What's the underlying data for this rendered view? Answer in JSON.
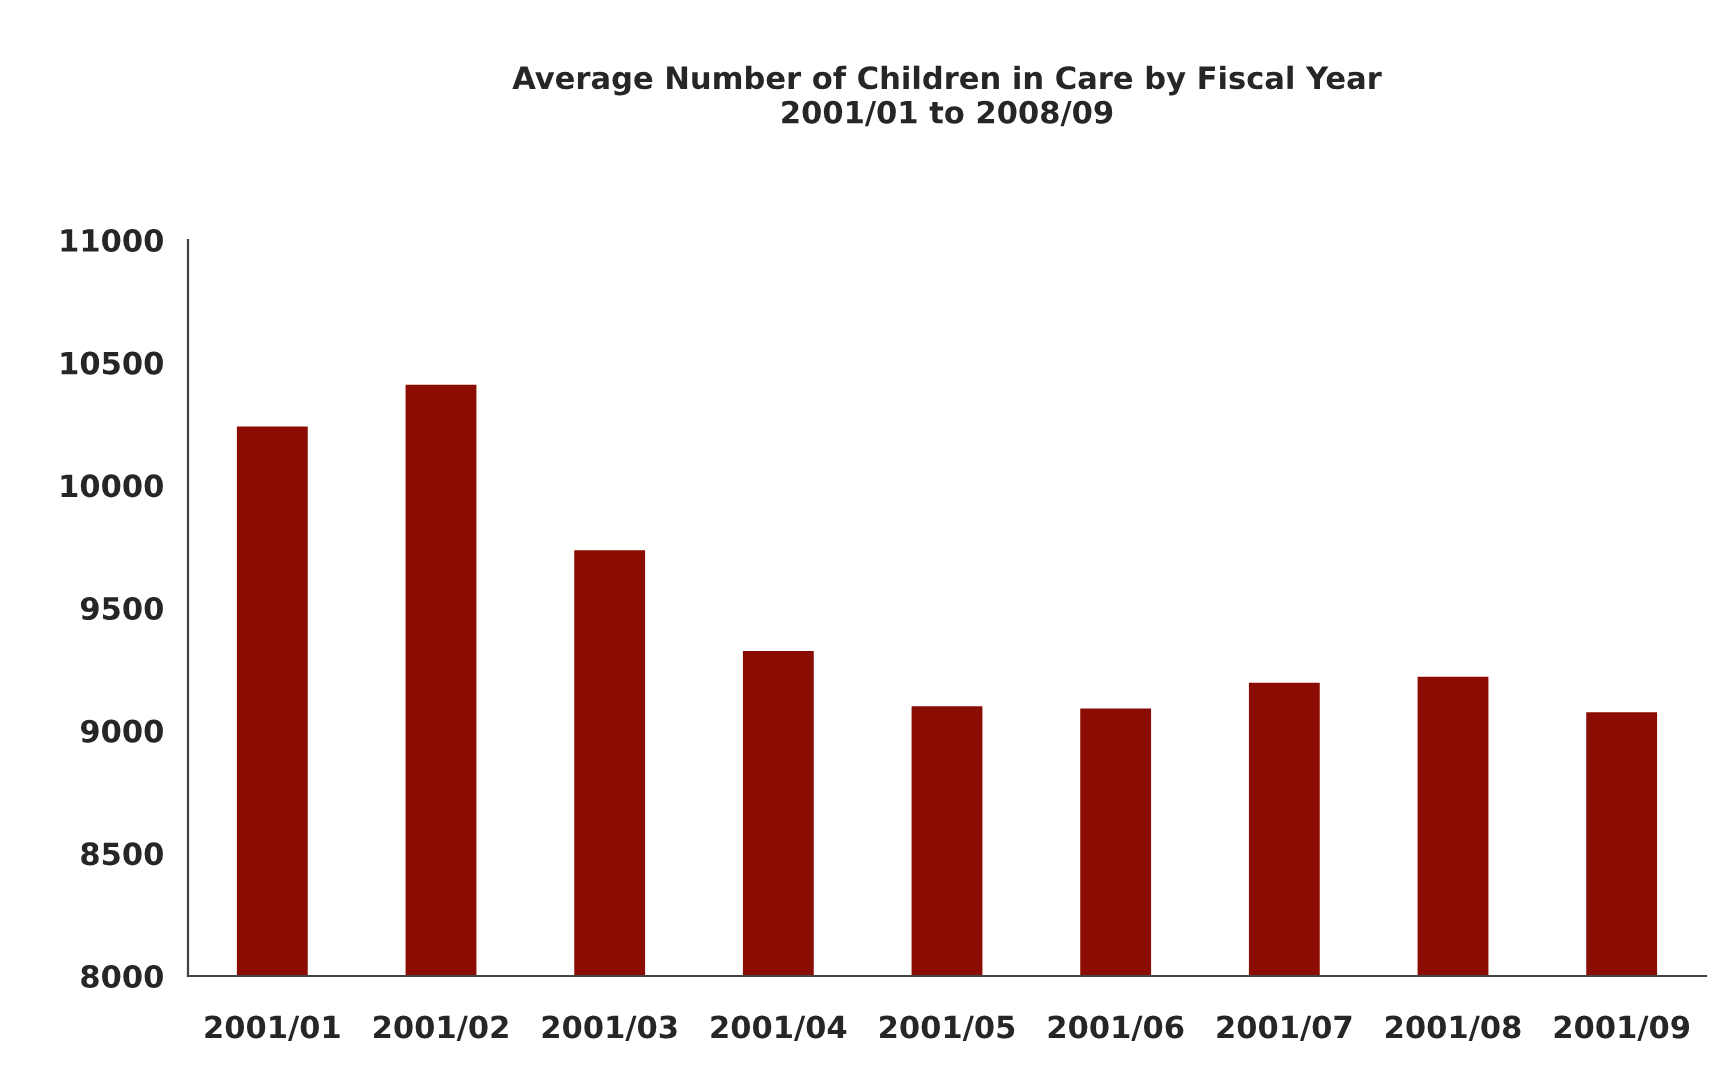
{
  "chart_data": {
    "type": "bar",
    "title": "Average Number of Children in Care by Fiscal Year\n2001/01 to 2008/09",
    "categories": [
      "2001/01",
      "2001/02",
      "2001/03",
      "2001/04",
      "2001/05",
      "2001/06",
      "2001/07",
      "2001/08",
      "2001/09"
    ],
    "values": [
      10240,
      10410,
      9735,
      9325,
      9100,
      9090,
      9195,
      9220,
      9075
    ],
    "color": "#8b0c02",
    "ylim": [
      8000,
      11000
    ],
    "yticks": [
      8000,
      8500,
      9000,
      9500,
      10000,
      10500,
      11000
    ],
    "grid": false
  }
}
